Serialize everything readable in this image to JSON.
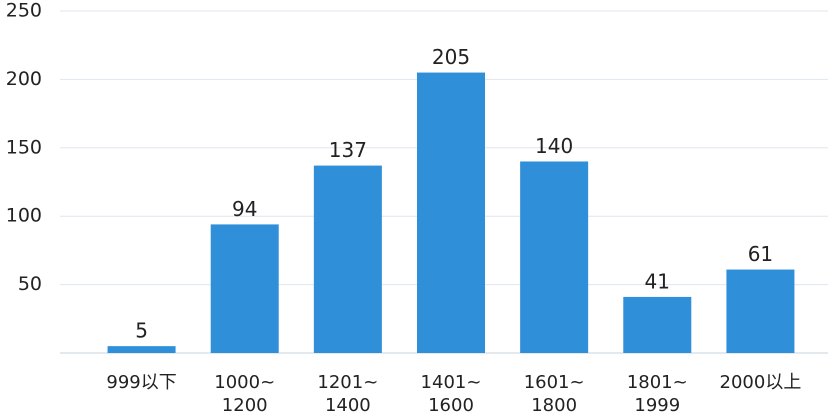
{
  "chart_data": {
    "type": "bar",
    "categories": [
      [
        "999以下"
      ],
      [
        "1000~",
        "1200"
      ],
      [
        "1201~",
        "1400"
      ],
      [
        "1401~",
        "1600"
      ],
      [
        "1601~",
        "1800"
      ],
      [
        "1801~",
        "1999"
      ],
      [
        "2000以上"
      ]
    ],
    "values": [
      5,
      94,
      137,
      205,
      140,
      41,
      61
    ],
    "color": "#2f8fd8",
    "ylim": [
      0,
      250
    ],
    "yticks": [
      50,
      100,
      150,
      200,
      250
    ],
    "grid": true
  }
}
